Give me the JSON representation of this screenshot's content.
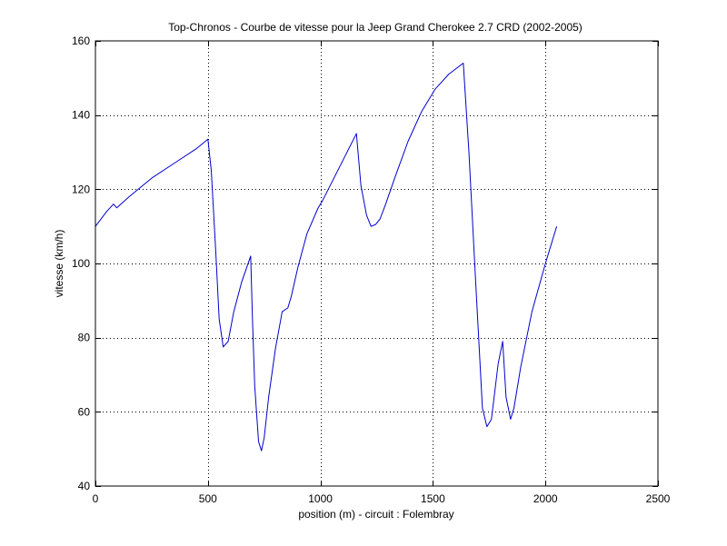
{
  "chart_data": {
    "type": "line",
    "title": "Top-Chronos - Courbe de vitesse pour la Jeep Grand Cherokee 2.7 CRD (2002-2005)",
    "xlabel": "position (m) - circuit : Folembray",
    "ylabel": "vitesse (km/h)",
    "xlim": [
      0,
      2500
    ],
    "ylim": [
      40,
      160
    ],
    "xticks": [
      0,
      500,
      1000,
      1500,
      2000,
      2500
    ],
    "yticks": [
      40,
      60,
      80,
      100,
      120,
      140,
      160
    ],
    "grid": "dotted",
    "legend": "none",
    "series": [
      {
        "color": "#0000cc",
        "x": [
          0,
          50,
          80,
          95,
          150,
          250,
          350,
          450,
          500,
          515,
          535,
          550,
          568,
          590,
          615,
          650,
          690,
          698,
          708,
          725,
          738,
          750,
          770,
          800,
          830,
          855,
          870,
          900,
          940,
          990,
          1010,
          1060,
          1110,
          1160,
          1180,
          1205,
          1225,
          1245,
          1265,
          1290,
          1330,
          1390,
          1450,
          1510,
          1570,
          1635,
          1660,
          1690,
          1720,
          1740,
          1760,
          1790,
          1810,
          1825,
          1845,
          1860,
          1890,
          1940,
          2000,
          2050
        ],
        "y": [
          110,
          114,
          116,
          115,
          118,
          123,
          127,
          131,
          133.5,
          125,
          103,
          85,
          77.5,
          79,
          87,
          95,
          102,
          85,
          67,
          52,
          49.5,
          53,
          64,
          77,
          87,
          88,
          91,
          99,
          108,
          115,
          117,
          123,
          129,
          135,
          121,
          113,
          110,
          110.5,
          112,
          116,
          123,
          133,
          141,
          147,
          151,
          154,
          130,
          95,
          61,
          56,
          58,
          73,
          79,
          64,
          58,
          61,
          72,
          87,
          100,
          110
        ]
      }
    ]
  }
}
